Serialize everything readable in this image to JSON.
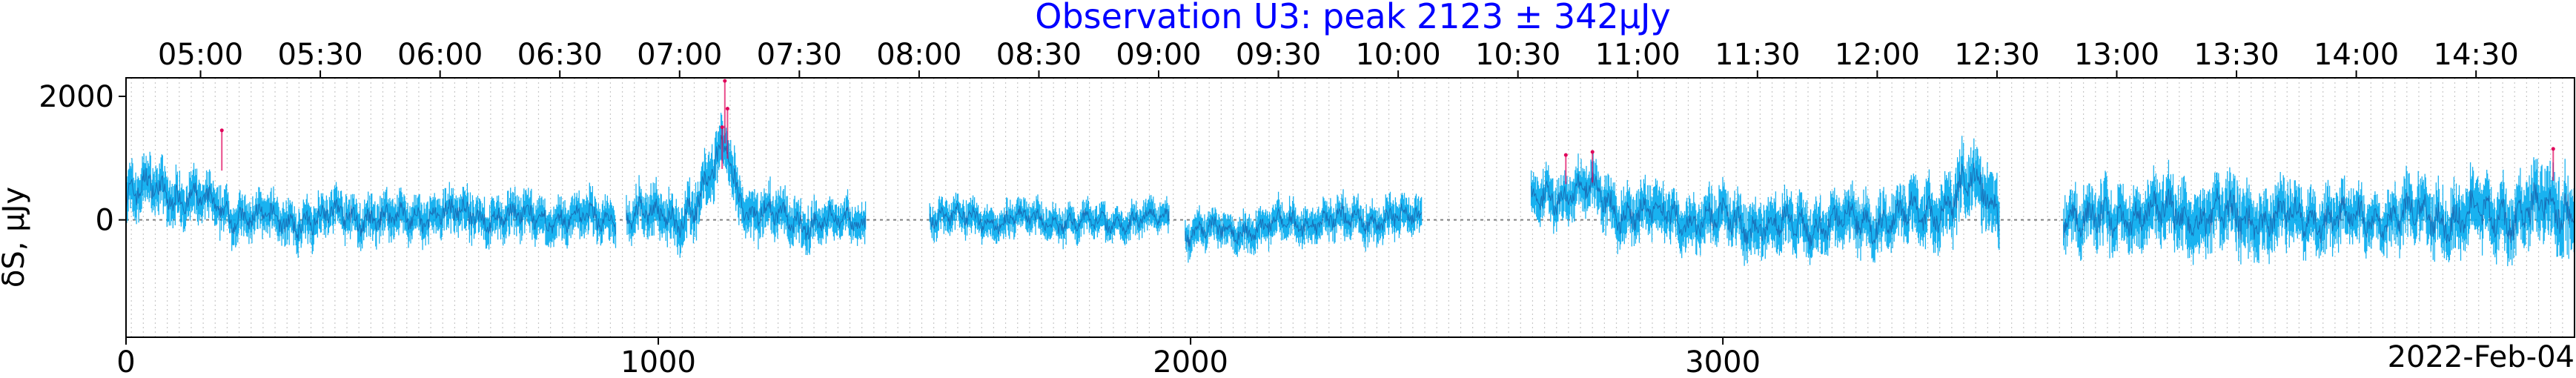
{
  "chart_data": {
    "type": "line",
    "title": "Observation U3: peak 2123 ± 342μJy",
    "ylabel": "δS, μJy",
    "xlabel": "",
    "corner_label": "2022-Feb-04",
    "xlim": [
      0,
      4600
    ],
    "ylim": [
      -1900,
      2300
    ],
    "x_ticks": [
      0,
      1000,
      2000,
      3000
    ],
    "y_ticks": [
      0,
      2000
    ],
    "top_time_ticks": [
      "05:00",
      "05:30",
      "06:00",
      "06:30",
      "07:00",
      "07:30",
      "08:00",
      "08:30",
      "09:00",
      "09:30",
      "10:00",
      "10:30",
      "11:00",
      "11:30",
      "12:00",
      "12:30",
      "13:00",
      "13:30",
      "14:00",
      "14:30"
    ],
    "top_time_tick_x": [
      140,
      365,
      590,
      815,
      1040,
      1265,
      1490,
      1715,
      1940,
      2165,
      2390,
      2615,
      2840,
      3065,
      3290,
      3515,
      3740,
      3965,
      4190,
      4415
    ],
    "grid": false,
    "colors": {
      "title": "#0000ff",
      "series": "#00aaee",
      "mean": "#1a3a8a",
      "flare": "#e0005a",
      "zero_line": "#808080"
    },
    "series": [
      {
        "segments": [
          [
            0,
            920
          ],
          [
            940,
            1390
          ],
          [
            1510,
            1960
          ],
          [
            1990,
            2435
          ],
          [
            2640,
            3520
          ],
          [
            3640,
            4600
          ]
        ],
        "values_at_x": [
          [
            0,
            300
          ],
          [
            50,
            550
          ],
          [
            100,
            400
          ],
          [
            150,
            250
          ],
          [
            200,
            100
          ],
          [
            300,
            -50
          ],
          [
            400,
            80
          ],
          [
            500,
            0
          ],
          [
            600,
            100
          ],
          [
            700,
            50
          ],
          [
            800,
            0
          ],
          [
            900,
            20
          ],
          [
            950,
            50
          ],
          [
            1050,
            100
          ],
          [
            1080,
            300
          ],
          [
            1110,
            900
          ],
          [
            1125,
            1300
          ],
          [
            1140,
            700
          ],
          [
            1170,
            150
          ],
          [
            1250,
            0
          ],
          [
            1300,
            -50
          ],
          [
            1390,
            0
          ],
          [
            1510,
            100
          ],
          [
            1600,
            0
          ],
          [
            1700,
            0
          ],
          [
            1800,
            -50
          ],
          [
            1900,
            0
          ],
          [
            1960,
            50
          ],
          [
            1990,
            -200
          ],
          [
            2100,
            -150
          ],
          [
            2200,
            -50
          ],
          [
            2300,
            0
          ],
          [
            2435,
            50
          ],
          [
            2640,
            300
          ],
          [
            2700,
            450
          ],
          [
            2750,
            500
          ],
          [
            2800,
            150
          ],
          [
            2900,
            50
          ],
          [
            3000,
            0
          ],
          [
            3100,
            -100
          ],
          [
            3200,
            -50
          ],
          [
            3300,
            0
          ],
          [
            3400,
            150
          ],
          [
            3470,
            600
          ],
          [
            3520,
            200
          ],
          [
            3640,
            100
          ],
          [
            3700,
            -50
          ],
          [
            3800,
            150
          ],
          [
            3900,
            50
          ],
          [
            4000,
            0
          ],
          [
            4100,
            50
          ],
          [
            4200,
            0
          ],
          [
            4300,
            100
          ],
          [
            4400,
            50
          ],
          [
            4500,
            100
          ],
          [
            4600,
            200
          ]
        ],
        "amplitude_at_x": [
          [
            0,
            700
          ],
          [
            200,
            550
          ],
          [
            500,
            550
          ],
          [
            900,
            550
          ],
          [
            1100,
            700
          ],
          [
            1400,
            450
          ],
          [
            1510,
            450
          ],
          [
            1960,
            400
          ],
          [
            1990,
            450
          ],
          [
            2435,
            500
          ],
          [
            2640,
            600
          ],
          [
            2800,
            650
          ],
          [
            3100,
            700
          ],
          [
            3300,
            700
          ],
          [
            3520,
            900
          ],
          [
            3640,
            700
          ],
          [
            3900,
            900
          ],
          [
            4200,
            700
          ],
          [
            4600,
            1000
          ]
        ],
        "flare_points": [
          [
            180,
            1450
          ],
          [
            1125,
            2250
          ],
          [
            1130,
            1800
          ],
          [
            1120,
            1500
          ],
          [
            2705,
            1050
          ],
          [
            2755,
            1100
          ],
          [
            4560,
            1150
          ]
        ]
      }
    ]
  }
}
